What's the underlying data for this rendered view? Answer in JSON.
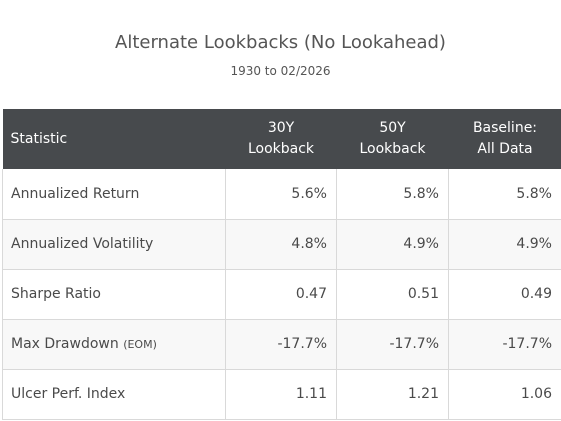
{
  "header": {
    "title": "Alternate Lookbacks (No Lookahead)",
    "subtitle": "1930 to 02/2026"
  },
  "table": {
    "columns": [
      {
        "line1": "Statistic",
        "line2": ""
      },
      {
        "line1": "30Y",
        "line2": "Lookback"
      },
      {
        "line1": "50Y",
        "line2": "Lookback"
      },
      {
        "line1": "Baseline:",
        "line2": "All Data"
      }
    ],
    "rows": [
      {
        "label": "Annualized Return",
        "note": "",
        "values": [
          "5.6%",
          "5.8%",
          "5.8%"
        ]
      },
      {
        "label": "Annualized Volatility",
        "note": "",
        "values": [
          "4.8%",
          "4.9%",
          "4.9%"
        ]
      },
      {
        "label": "Sharpe Ratio",
        "note": "",
        "values": [
          "0.47",
          "0.51",
          "0.49"
        ]
      },
      {
        "label": "Max Drawdown",
        "note": "(EOM)",
        "values": [
          "-17.7%",
          "-17.7%",
          "-17.7%"
        ]
      },
      {
        "label": "Ulcer Perf. Index",
        "note": "",
        "values": [
          "1.11",
          "1.21",
          "1.06"
        ]
      }
    ]
  },
  "colors": {
    "header_background": "#474a4d",
    "header_text": "#ffffff",
    "body_text": "#4a4a4a",
    "row_alt": "#f8f8f8",
    "border": "#d9d9d9"
  }
}
